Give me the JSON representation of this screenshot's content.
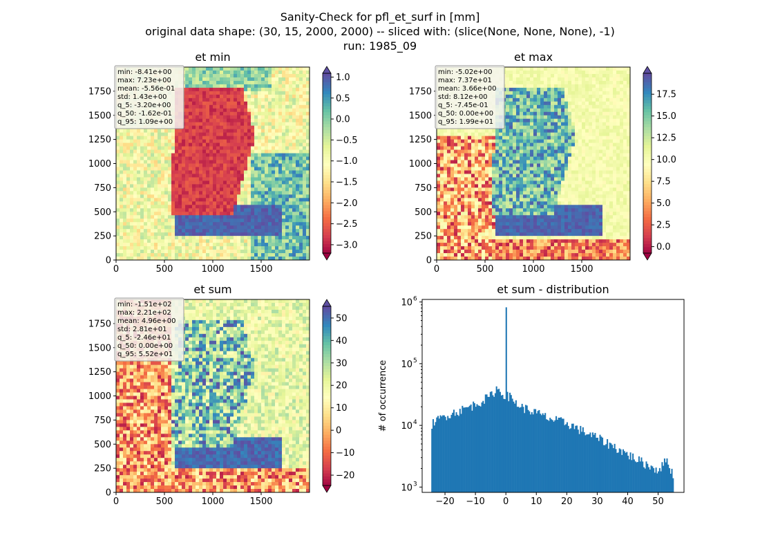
{
  "figure": {
    "title_lines": [
      "Sanity-Check for pfl_et_surf in [mm]",
      "original data shape: (30, 15, 2000, 2000) -- sliced with: (slice(None, None, None), -1)",
      "run: 1985_09"
    ]
  },
  "chart_data": [
    {
      "type": "heatmap",
      "title": "et min",
      "xticks": [
        "0",
        "500",
        "1000",
        "1500"
      ],
      "yticks": [
        "0",
        "250",
        "500",
        "750",
        "1000",
        "1250",
        "1500",
        "1750"
      ],
      "xlim": [
        0,
        2000
      ],
      "ylim": [
        0,
        2000
      ],
      "colormap": "Spectral",
      "colorbar": {
        "ticks": [
          "1.0",
          "0.5",
          "0.0",
          "−0.5",
          "−1.0",
          "−1.5",
          "−2.0",
          "−2.5",
          "−3.0"
        ],
        "range": [
          -3.2,
          1.09
        ],
        "extend": "both"
      },
      "stats": [
        "min: -8.41e+00",
        "max: 7.23e+00",
        "mean: -5.56e-01",
        "std: 1.43e+00",
        "q_5: -3.20e+00",
        "q_50: -1.62e-01",
        "q_95: 1.09e+00"
      ]
    },
    {
      "type": "heatmap",
      "title": "et max",
      "xticks": [
        "0",
        "500",
        "1000",
        "1500"
      ],
      "yticks": [
        "0",
        "250",
        "500",
        "750",
        "1000",
        "1250",
        "1500",
        "1750"
      ],
      "xlim": [
        0,
        2000
      ],
      "ylim": [
        0,
        2000
      ],
      "colormap": "Spectral",
      "colorbar": {
        "ticks": [
          "17.5",
          "15.0",
          "12.5",
          "10.0",
          "7.5",
          "5.0",
          "2.5",
          "0.0"
        ],
        "range": [
          -0.745,
          19.9
        ],
        "extend": "both"
      },
      "stats": [
        "min: -5.02e+00",
        "max: 7.37e+01",
        "mean: 3.66e+00",
        "std: 8.12e+00",
        "q_5: -7.45e-01",
        "q_50: 0.00e+00",
        "q_95: 1.99e+01"
      ]
    },
    {
      "type": "heatmap",
      "title": "et sum",
      "xticks": [
        "0",
        "500",
        "1000",
        "1500"
      ],
      "yticks": [
        "0",
        "250",
        "500",
        "750",
        "1000",
        "1250",
        "1500",
        "1750"
      ],
      "xlim": [
        0,
        2000
      ],
      "ylim": [
        0,
        2000
      ],
      "colormap": "Spectral",
      "colorbar": {
        "ticks": [
          "50",
          "40",
          "30",
          "20",
          "10",
          "0",
          "−10",
          "−20"
        ],
        "range": [
          -24.6,
          55.2
        ],
        "extend": "both"
      },
      "stats": [
        "min: -1.51e+02",
        "max: 2.21e+02",
        "mean: 4.96e+00",
        "std: 2.81e+01",
        "q_5: -2.46e+01",
        "q_50: 0.00e+00",
        "q_95: 5.52e+01"
      ]
    },
    {
      "type": "bar",
      "title": "et sum - distribution",
      "ylabel": "# of occurrence",
      "yscale": "log",
      "xticks": [
        "−20",
        "−10",
        "0",
        "10",
        "20",
        "30",
        "40",
        "50"
      ],
      "yticks": [
        "10",
        "10",
        "10",
        "10"
      ],
      "ytick_exponents": [
        "3",
        "4",
        "5",
        "6"
      ],
      "xlim": [
        -27.5,
        58.5
      ],
      "ylim": [
        820,
        1100000
      ],
      "bar_color": "#1f77b4",
      "anchor_x": [
        -24.5,
        -20,
        -15,
        -10,
        -5,
        -3,
        -1,
        0,
        1,
        3,
        5,
        10,
        15,
        20,
        25,
        30,
        35,
        40,
        45,
        50,
        53,
        55
      ],
      "anchor_y": [
        10500,
        14500,
        17500,
        22000,
        30000,
        40000,
        32000,
        820000,
        30000,
        24000,
        20000,
        16000,
        12500,
        11000,
        8200,
        6300,
        4700,
        3400,
        2500,
        1900,
        2800,
        1500
      ],
      "spike_x": 0,
      "spike_y": 820000
    }
  ]
}
